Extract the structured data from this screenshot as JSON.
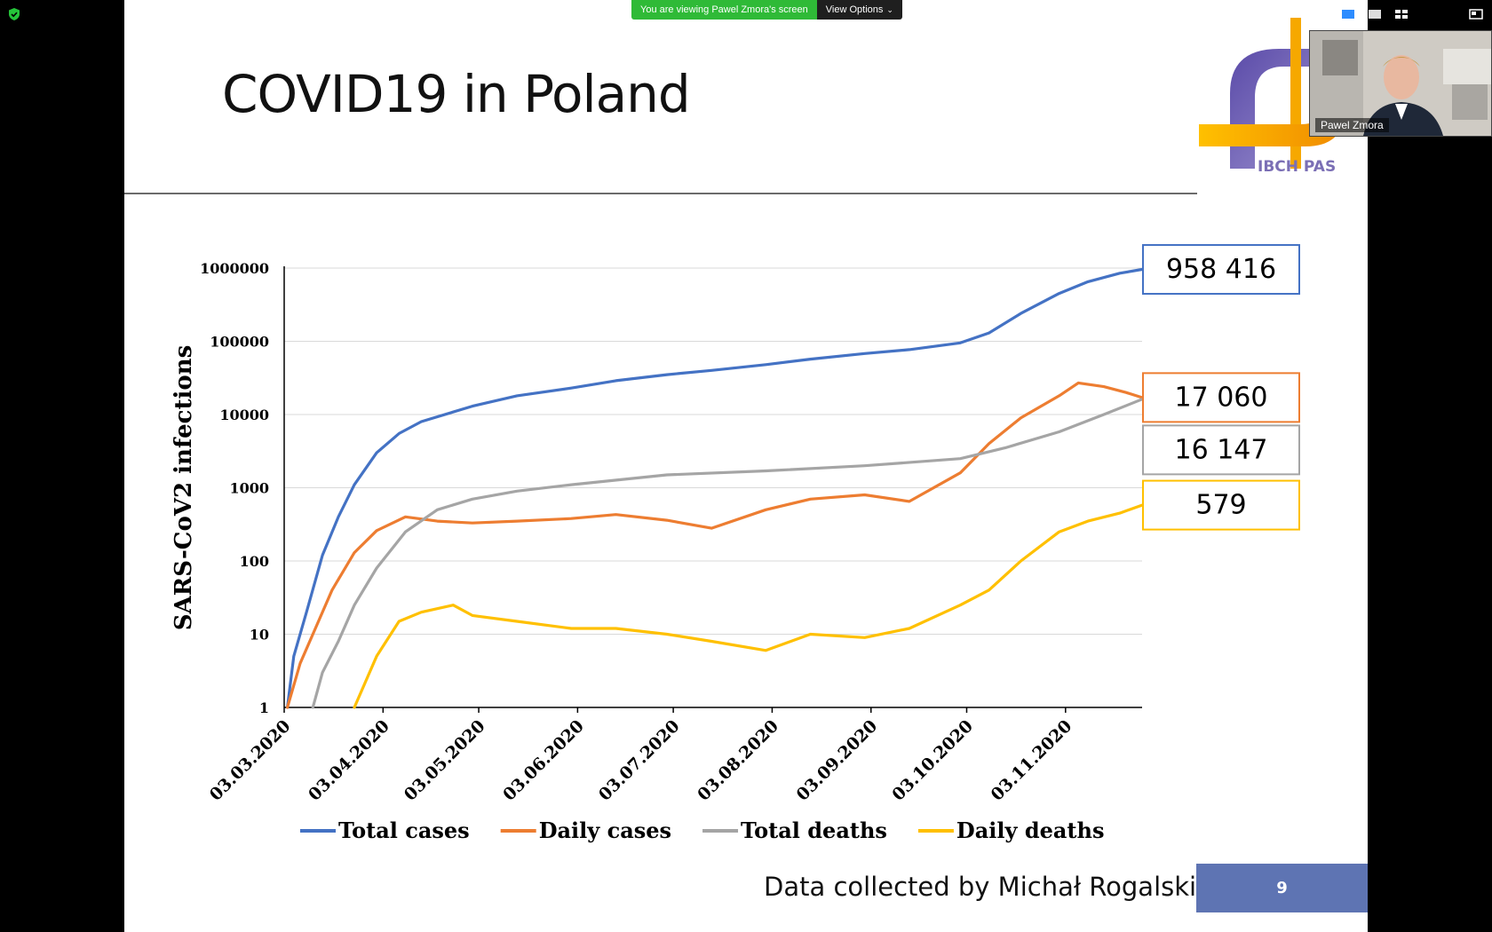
{
  "zoom": {
    "banner_text": "You are viewing Pawel Zmora's screen",
    "view_options_label": "View Options",
    "participant_name": "Pawel Zmora"
  },
  "slide": {
    "title": "COVID19 in Poland",
    "logo_text": "IBCH PAS",
    "footer_credit": "Data collected by Michał Rogalski",
    "page_number": "9"
  },
  "chart_data": {
    "type": "line",
    "title": "",
    "xlabel": "",
    "ylabel": "SARS-CoV2 infections",
    "yscale": "log",
    "ylim": [
      1,
      1000000
    ],
    "y_ticks": [
      "1000000",
      "100000",
      "10000",
      "1000",
      "100",
      "10",
      "1"
    ],
    "x_ticks": [
      "03.03.2020",
      "03.04.2020",
      "03.05.2020",
      "03.06.2020",
      "03.07.2020",
      "03.08.2020",
      "03.09.2020",
      "03.10.2020",
      "03.11.2020"
    ],
    "x_range": [
      "03.03.2020",
      "27.11.2020"
    ],
    "grid": "horizontal",
    "legend": "bottom",
    "colors": {
      "total_cases": "#4472c4",
      "daily_cases": "#ed7d31",
      "total_deaths": "#a5a5a5",
      "daily_deaths": "#ffc000"
    },
    "series": [
      {
        "key": "total_cases",
        "name": "Total cases",
        "x": [
          "04.03.2020",
          "06.03.2020",
          "10.03.2020",
          "15.03.2020",
          "20.03.2020",
          "25.03.2020",
          "01.04.2020",
          "08.04.2020",
          "15.04.2020",
          "01.05.2020",
          "15.05.2020",
          "01.06.2020",
          "15.06.2020",
          "01.07.2020",
          "15.07.2020",
          "01.08.2020",
          "15.08.2020",
          "01.09.2020",
          "15.09.2020",
          "01.10.2020",
          "10.10.2020",
          "20.10.2020",
          "01.11.2020",
          "10.11.2020",
          "20.11.2020",
          "27.11.2020"
        ],
        "values": [
          1,
          5,
          20,
          120,
          400,
          1100,
          3000,
          5500,
          8000,
          13000,
          18000,
          23000,
          29000,
          35000,
          40000,
          48000,
          57000,
          68000,
          77000,
          95000,
          130000,
          240000,
          450000,
          650000,
          850000,
          958416
        ],
        "end_label": "958 416"
      },
      {
        "key": "daily_cases",
        "name": "Daily cases",
        "x": [
          "04.03.2020",
          "08.03.2020",
          "12.03.2020",
          "18.03.2020",
          "25.03.2020",
          "01.04.2020",
          "10.04.2020",
          "20.04.2020",
          "01.05.2020",
          "15.05.2020",
          "01.06.2020",
          "15.06.2020",
          "01.07.2020",
          "15.07.2020",
          "01.08.2020",
          "15.08.2020",
          "01.09.2020",
          "15.09.2020",
          "01.10.2020",
          "10.10.2020",
          "20.10.2020",
          "01.11.2020",
          "07.11.2020",
          "15.11.2020",
          "22.11.2020",
          "27.11.2020"
        ],
        "values": [
          1,
          4,
          10,
          40,
          130,
          260,
          400,
          350,
          330,
          350,
          380,
          430,
          360,
          280,
          500,
          700,
          800,
          650,
          1600,
          4000,
          9000,
          18000,
          27000,
          24000,
          20000,
          17060
        ],
        "end_label": "17 060"
      },
      {
        "key": "total_deaths",
        "name": "Total deaths",
        "x": [
          "12.03.2020",
          "15.03.2020",
          "20.03.2020",
          "25.03.2020",
          "01.04.2020",
          "10.04.2020",
          "20.04.2020",
          "01.05.2020",
          "15.05.2020",
          "01.06.2020",
          "01.07.2020",
          "01.08.2020",
          "01.09.2020",
          "01.10.2020",
          "15.10.2020",
          "01.11.2020",
          "15.11.2020",
          "27.11.2020"
        ],
        "values": [
          1,
          3,
          8,
          25,
          80,
          250,
          500,
          700,
          900,
          1100,
          1500,
          1700,
          2000,
          2500,
          3500,
          5800,
          10000,
          16147
        ],
        "end_label": "16 147"
      },
      {
        "key": "daily_deaths",
        "name": "Daily deaths",
        "x": [
          "25.03.2020",
          "01.04.2020",
          "08.04.2020",
          "15.04.2020",
          "25.04.2020",
          "01.05.2020",
          "15.05.2020",
          "01.06.2020",
          "15.06.2020",
          "01.07.2020",
          "15.07.2020",
          "01.08.2020",
          "15.08.2020",
          "01.09.2020",
          "15.09.2020",
          "01.10.2020",
          "10.10.2020",
          "20.10.2020",
          "01.11.2020",
          "10.11.2020",
          "20.11.2020",
          "27.11.2020"
        ],
        "values": [
          1,
          5,
          15,
          20,
          25,
          18,
          15,
          12,
          12,
          10,
          8,
          6,
          10,
          9,
          12,
          25,
          40,
          100,
          250,
          350,
          450,
          579
        ],
        "end_label": "579"
      }
    ]
  }
}
